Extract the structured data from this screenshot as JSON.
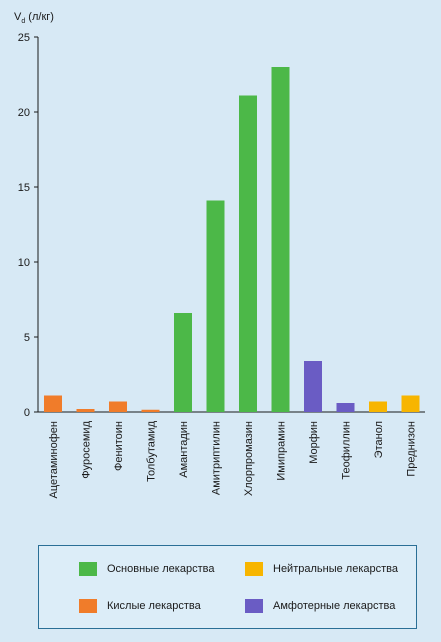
{
  "chart_data": {
    "type": "bar",
    "ylabel_main": "V",
    "ylabel_sub": "d",
    "ylabel_unit": "(л/кг)",
    "ylim": [
      0,
      25
    ],
    "yticks": [
      "0",
      "5",
      "10",
      "15",
      "20",
      "25"
    ],
    "categories": [
      "Ацетаминофен",
      "Фуросемид",
      "Фенитоин",
      "Толбутамид",
      "Амантадин",
      "Амитриптилин",
      "Хлорпромазин",
      "Имипрамин",
      "Морфин",
      "Теофиллин",
      "Этанол",
      "Преднизон"
    ],
    "values": [
      1.1,
      0.2,
      0.7,
      0.15,
      6.6,
      14.1,
      21.1,
      23.0,
      3.4,
      0.6,
      0.7,
      1.1
    ],
    "groups": [
      "acid",
      "acid",
      "acid",
      "acid",
      "basic",
      "basic",
      "basic",
      "basic",
      "amph",
      "amph",
      "neutral",
      "neutral"
    ],
    "grid": false,
    "legend_position": "bottom",
    "legend": [
      {
        "key": "basic",
        "label": "Основные лекарства",
        "color": "#4cb848"
      },
      {
        "key": "neutral",
        "label": "Нейтральные лекарства",
        "color": "#f7b500"
      },
      {
        "key": "acid",
        "label": "Кислые лекарства",
        "color": "#f07c2a"
      },
      {
        "key": "amph",
        "label": "Амфотерные лекарства",
        "color": "#6a5cc4"
      }
    ]
  }
}
